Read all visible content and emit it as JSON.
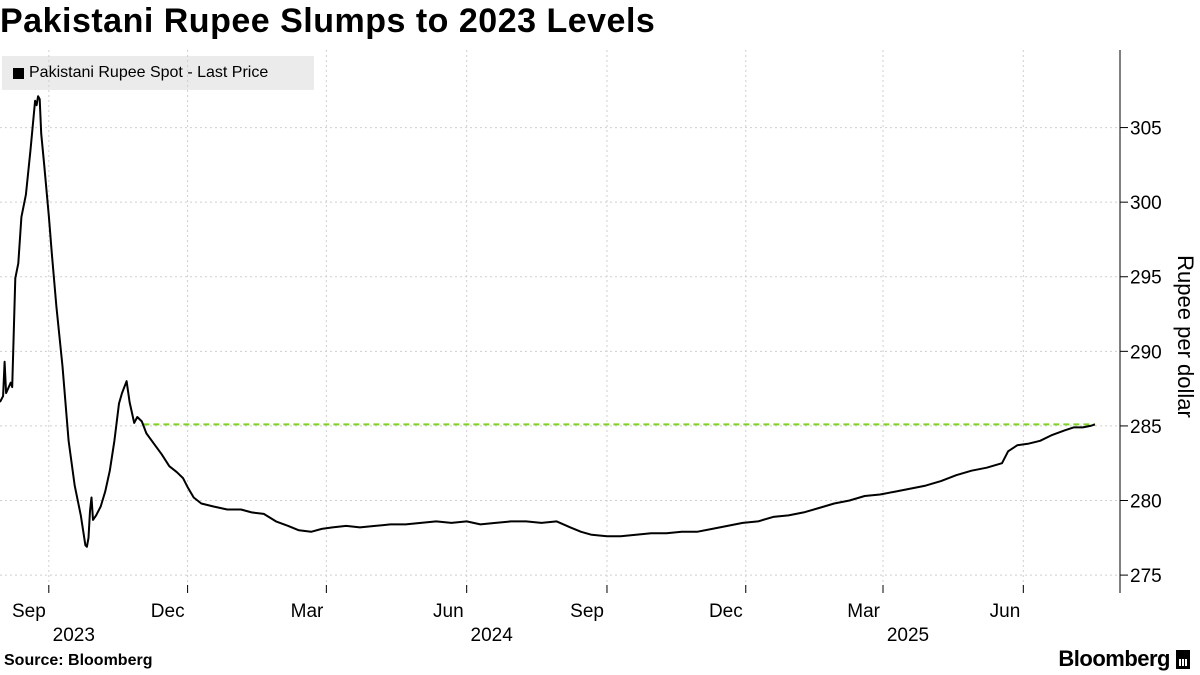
{
  "title": "Pakistani Rupee Slumps to 2023 Levels",
  "legend": {
    "label": "Pakistani Rupee Spot - Last Price"
  },
  "footer": {
    "source": "Source: Bloomberg",
    "brand": "Bloomberg"
  },
  "colors": {
    "line": "#000000",
    "reference": "#7ed321",
    "grid": "#cfcfcf",
    "legend_bg": "#ebebeb"
  },
  "chart_data": {
    "type": "line",
    "title": "Pakistani Rupee Slumps to 2023 Levels",
    "ylabel": "Rupee per dollar",
    "ylim": [
      273.8,
      310.2
    ],
    "y_ticks": [
      275,
      280,
      285,
      290,
      295,
      300,
      305
    ],
    "x_range": [
      "2023-07-31",
      "2025-07-18"
    ],
    "x_ticks": [
      {
        "date": "2023-09-01",
        "label": "Sep",
        "year": "2023"
      },
      {
        "date": "2023-12-01",
        "label": "Dec",
        "year": ""
      },
      {
        "date": "2024-03-01",
        "label": "Mar",
        "year": ""
      },
      {
        "date": "2024-06-01",
        "label": "Jun",
        "year": "2024"
      },
      {
        "date": "2024-09-01",
        "label": "Sep",
        "year": ""
      },
      {
        "date": "2024-12-01",
        "label": "Dec",
        "year": ""
      },
      {
        "date": "2025-03-01",
        "label": "Mar",
        "year": "2025"
      },
      {
        "date": "2025-06-01",
        "label": "Jun",
        "year": ""
      }
    ],
    "grid": true,
    "legend_position": "top-left",
    "reference_line": {
      "y": 285.1,
      "from": "2023-11-02",
      "to": "2025-07-18",
      "style": "dashed"
    },
    "series": [
      {
        "name": "Pakistani Rupee Spot - Last Price",
        "points": [
          [
            "2023-07-31",
            286.6
          ],
          [
            "2023-08-02",
            287.0
          ],
          [
            "2023-08-03",
            289.3
          ],
          [
            "2023-08-04",
            287.2
          ],
          [
            "2023-08-07",
            287.9
          ],
          [
            "2023-08-08",
            287.6
          ],
          [
            "2023-08-10",
            294.9
          ],
          [
            "2023-08-12",
            295.9
          ],
          [
            "2023-08-14",
            299.0
          ],
          [
            "2023-08-17",
            300.5
          ],
          [
            "2023-08-20",
            303.5
          ],
          [
            "2023-08-23",
            306.8
          ],
          [
            "2023-08-24",
            306.5
          ],
          [
            "2023-08-25",
            307.1
          ],
          [
            "2023-08-26",
            306.9
          ],
          [
            "2023-08-27",
            304.6
          ],
          [
            "2023-08-29",
            302.5
          ],
          [
            "2023-09-01",
            299.1
          ],
          [
            "2023-09-03",
            296.5
          ],
          [
            "2023-09-06",
            293.0
          ],
          [
            "2023-09-10",
            289.0
          ],
          [
            "2023-09-14",
            284.0
          ],
          [
            "2023-09-18",
            281.0
          ],
          [
            "2023-09-22",
            279.0
          ],
          [
            "2023-09-25",
            277.0
          ],
          [
            "2023-09-26",
            276.9
          ],
          [
            "2023-09-27",
            277.5
          ],
          [
            "2023-09-28",
            279.3
          ],
          [
            "2023-09-29",
            280.2
          ],
          [
            "2023-09-30",
            278.7
          ],
          [
            "2023-10-02",
            279.0
          ],
          [
            "2023-10-05",
            279.6
          ],
          [
            "2023-10-08",
            280.6
          ],
          [
            "2023-10-11",
            282.0
          ],
          [
            "2023-10-14",
            284.0
          ],
          [
            "2023-10-17",
            286.5
          ],
          [
            "2023-10-19",
            287.2
          ],
          [
            "2023-10-22",
            288.0
          ],
          [
            "2023-10-24",
            286.6
          ],
          [
            "2023-10-27",
            285.2
          ],
          [
            "2023-10-29",
            285.6
          ],
          [
            "2023-11-01",
            285.3
          ],
          [
            "2023-11-04",
            284.5
          ],
          [
            "2023-11-09",
            283.8
          ],
          [
            "2023-11-14",
            283.1
          ],
          [
            "2023-11-19",
            282.3
          ],
          [
            "2023-11-24",
            281.9
          ],
          [
            "2023-11-28",
            281.5
          ],
          [
            "2023-12-01",
            280.9
          ],
          [
            "2023-12-05",
            280.2
          ],
          [
            "2023-12-10",
            279.8
          ],
          [
            "2023-12-18",
            279.6
          ],
          [
            "2023-12-27",
            279.4
          ],
          [
            "2024-01-05",
            279.4
          ],
          [
            "2024-01-12",
            279.2
          ],
          [
            "2024-01-20",
            279.1
          ],
          [
            "2024-01-28",
            278.6
          ],
          [
            "2024-02-05",
            278.3
          ],
          [
            "2024-02-12",
            278.0
          ],
          [
            "2024-02-20",
            277.9
          ],
          [
            "2024-02-27",
            278.1
          ],
          [
            "2024-03-05",
            278.2
          ],
          [
            "2024-03-14",
            278.3
          ],
          [
            "2024-03-23",
            278.2
          ],
          [
            "2024-04-02",
            278.3
          ],
          [
            "2024-04-12",
            278.4
          ],
          [
            "2024-04-22",
            278.4
          ],
          [
            "2024-05-02",
            278.5
          ],
          [
            "2024-05-12",
            278.6
          ],
          [
            "2024-05-22",
            278.5
          ],
          [
            "2024-06-01",
            278.6
          ],
          [
            "2024-06-10",
            278.4
          ],
          [
            "2024-06-20",
            278.5
          ],
          [
            "2024-06-30",
            278.6
          ],
          [
            "2024-07-10",
            278.6
          ],
          [
            "2024-07-20",
            278.5
          ],
          [
            "2024-07-30",
            278.6
          ],
          [
            "2024-08-08",
            278.2
          ],
          [
            "2024-08-15",
            277.9
          ],
          [
            "2024-08-22",
            277.7
          ],
          [
            "2024-09-01",
            277.6
          ],
          [
            "2024-09-10",
            277.6
          ],
          [
            "2024-09-20",
            277.7
          ],
          [
            "2024-09-30",
            277.8
          ],
          [
            "2024-10-10",
            277.8
          ],
          [
            "2024-10-20",
            277.9
          ],
          [
            "2024-10-30",
            277.9
          ],
          [
            "2024-11-09",
            278.1
          ],
          [
            "2024-11-19",
            278.3
          ],
          [
            "2024-11-29",
            278.5
          ],
          [
            "2024-12-09",
            278.6
          ],
          [
            "2024-12-19",
            278.9
          ],
          [
            "2024-12-29",
            279.0
          ],
          [
            "2025-01-08",
            279.2
          ],
          [
            "2025-01-18",
            279.5
          ],
          [
            "2025-01-28",
            279.8
          ],
          [
            "2025-02-07",
            280.0
          ],
          [
            "2025-02-17",
            280.3
          ],
          [
            "2025-02-27",
            280.4
          ],
          [
            "2025-03-09",
            280.6
          ],
          [
            "2025-03-19",
            280.8
          ],
          [
            "2025-03-29",
            281.0
          ],
          [
            "2025-04-08",
            281.3
          ],
          [
            "2025-04-18",
            281.7
          ],
          [
            "2025-04-28",
            282.0
          ],
          [
            "2025-05-08",
            282.2
          ],
          [
            "2025-05-18",
            282.5
          ],
          [
            "2025-05-22",
            283.3
          ],
          [
            "2025-05-28",
            283.7
          ],
          [
            "2025-06-04",
            283.8
          ],
          [
            "2025-06-12",
            284.0
          ],
          [
            "2025-06-20",
            284.4
          ],
          [
            "2025-06-28",
            284.7
          ],
          [
            "2025-07-04",
            284.9
          ],
          [
            "2025-07-10",
            284.9
          ],
          [
            "2025-07-15",
            285.0
          ],
          [
            "2025-07-18",
            285.1
          ]
        ]
      }
    ]
  }
}
